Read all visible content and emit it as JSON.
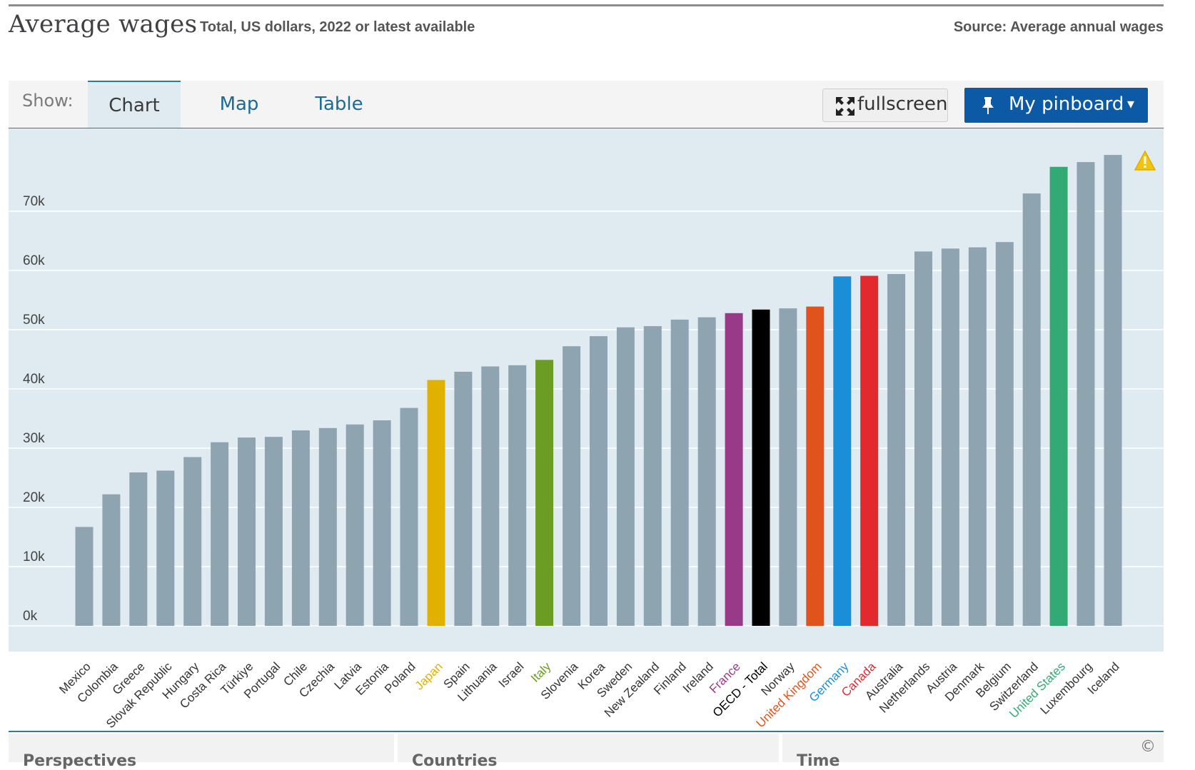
{
  "header": {
    "title": "Average wages",
    "subtitle": "Total, US dollars, 2022 or latest available",
    "source": "Source: Average annual wages"
  },
  "toolbar": {
    "show_label": "Show:",
    "tabs": [
      {
        "label": "Chart",
        "active": true
      },
      {
        "label": "Map",
        "active": false
      },
      {
        "label": "Table",
        "active": false
      }
    ],
    "fullscreen_label": "fullscreen",
    "pinboard_label": "My pinboard",
    "pinboard_caret": "▾"
  },
  "footer": {
    "panels": [
      "Perspectives",
      "Countries",
      "Time"
    ],
    "copyright": "©"
  },
  "colors": {
    "plot_bg": "#dfeaf1",
    "bar_default": "#8fa4b1",
    "accent": "#0c5aa6"
  },
  "chart_data": {
    "type": "bar",
    "title": "Average wages",
    "subtitle": "Total, US dollars, 2022 or latest available",
    "ylim": [
      0,
      80000
    ],
    "yticks": [
      0,
      10000,
      20000,
      30000,
      40000,
      50000,
      60000,
      70000
    ],
    "ytick_labels": [
      "0k",
      "10k",
      "20k",
      "30k",
      "40k",
      "50k",
      "60k",
      "70k"
    ],
    "grid": true,
    "warning_icon": "warning-triangle-icon",
    "categories": [
      "Mexico",
      "Colombia",
      "Greece",
      "Slovak Republic",
      "Hungary",
      "Costa Rica",
      "Türkiye",
      "Portugal",
      "Chile",
      "Czechia",
      "Latvia",
      "Estonia",
      "Poland",
      "Japan",
      "Spain",
      "Lithuania",
      "Israel",
      "Italy",
      "Slovenia",
      "Korea",
      "Sweden",
      "New Zealand",
      "Finland",
      "Ireland",
      "France",
      "OECD - Total",
      "Norway",
      "United Kingdom",
      "Germany",
      "Canada",
      "Australia",
      "Netherlands",
      "Austria",
      "Denmark",
      "Belgium",
      "Switzerland",
      "United States",
      "Luxembourg",
      "Iceland"
    ],
    "values": [
      16700,
      22200,
      25900,
      26200,
      28500,
      31000,
      31800,
      31900,
      33000,
      33400,
      34000,
      34700,
      36800,
      41500,
      42900,
      43800,
      44000,
      44900,
      47200,
      48900,
      50400,
      50600,
      51700,
      52100,
      52800,
      53400,
      53600,
      53900,
      59000,
      59100,
      59400,
      63200,
      63700,
      63900,
      64800,
      73000,
      77500,
      78300,
      79500
    ],
    "highlight_colors": {
      "Japan": "#e0b100",
      "Italy": "#6b9c24",
      "France": "#993a88",
      "OECD - Total": "#000000",
      "United Kingdom": "#e1531c",
      "Germany": "#1a8ed7",
      "Canada": "#e22a2e",
      "United States": "#33aa76"
    }
  }
}
